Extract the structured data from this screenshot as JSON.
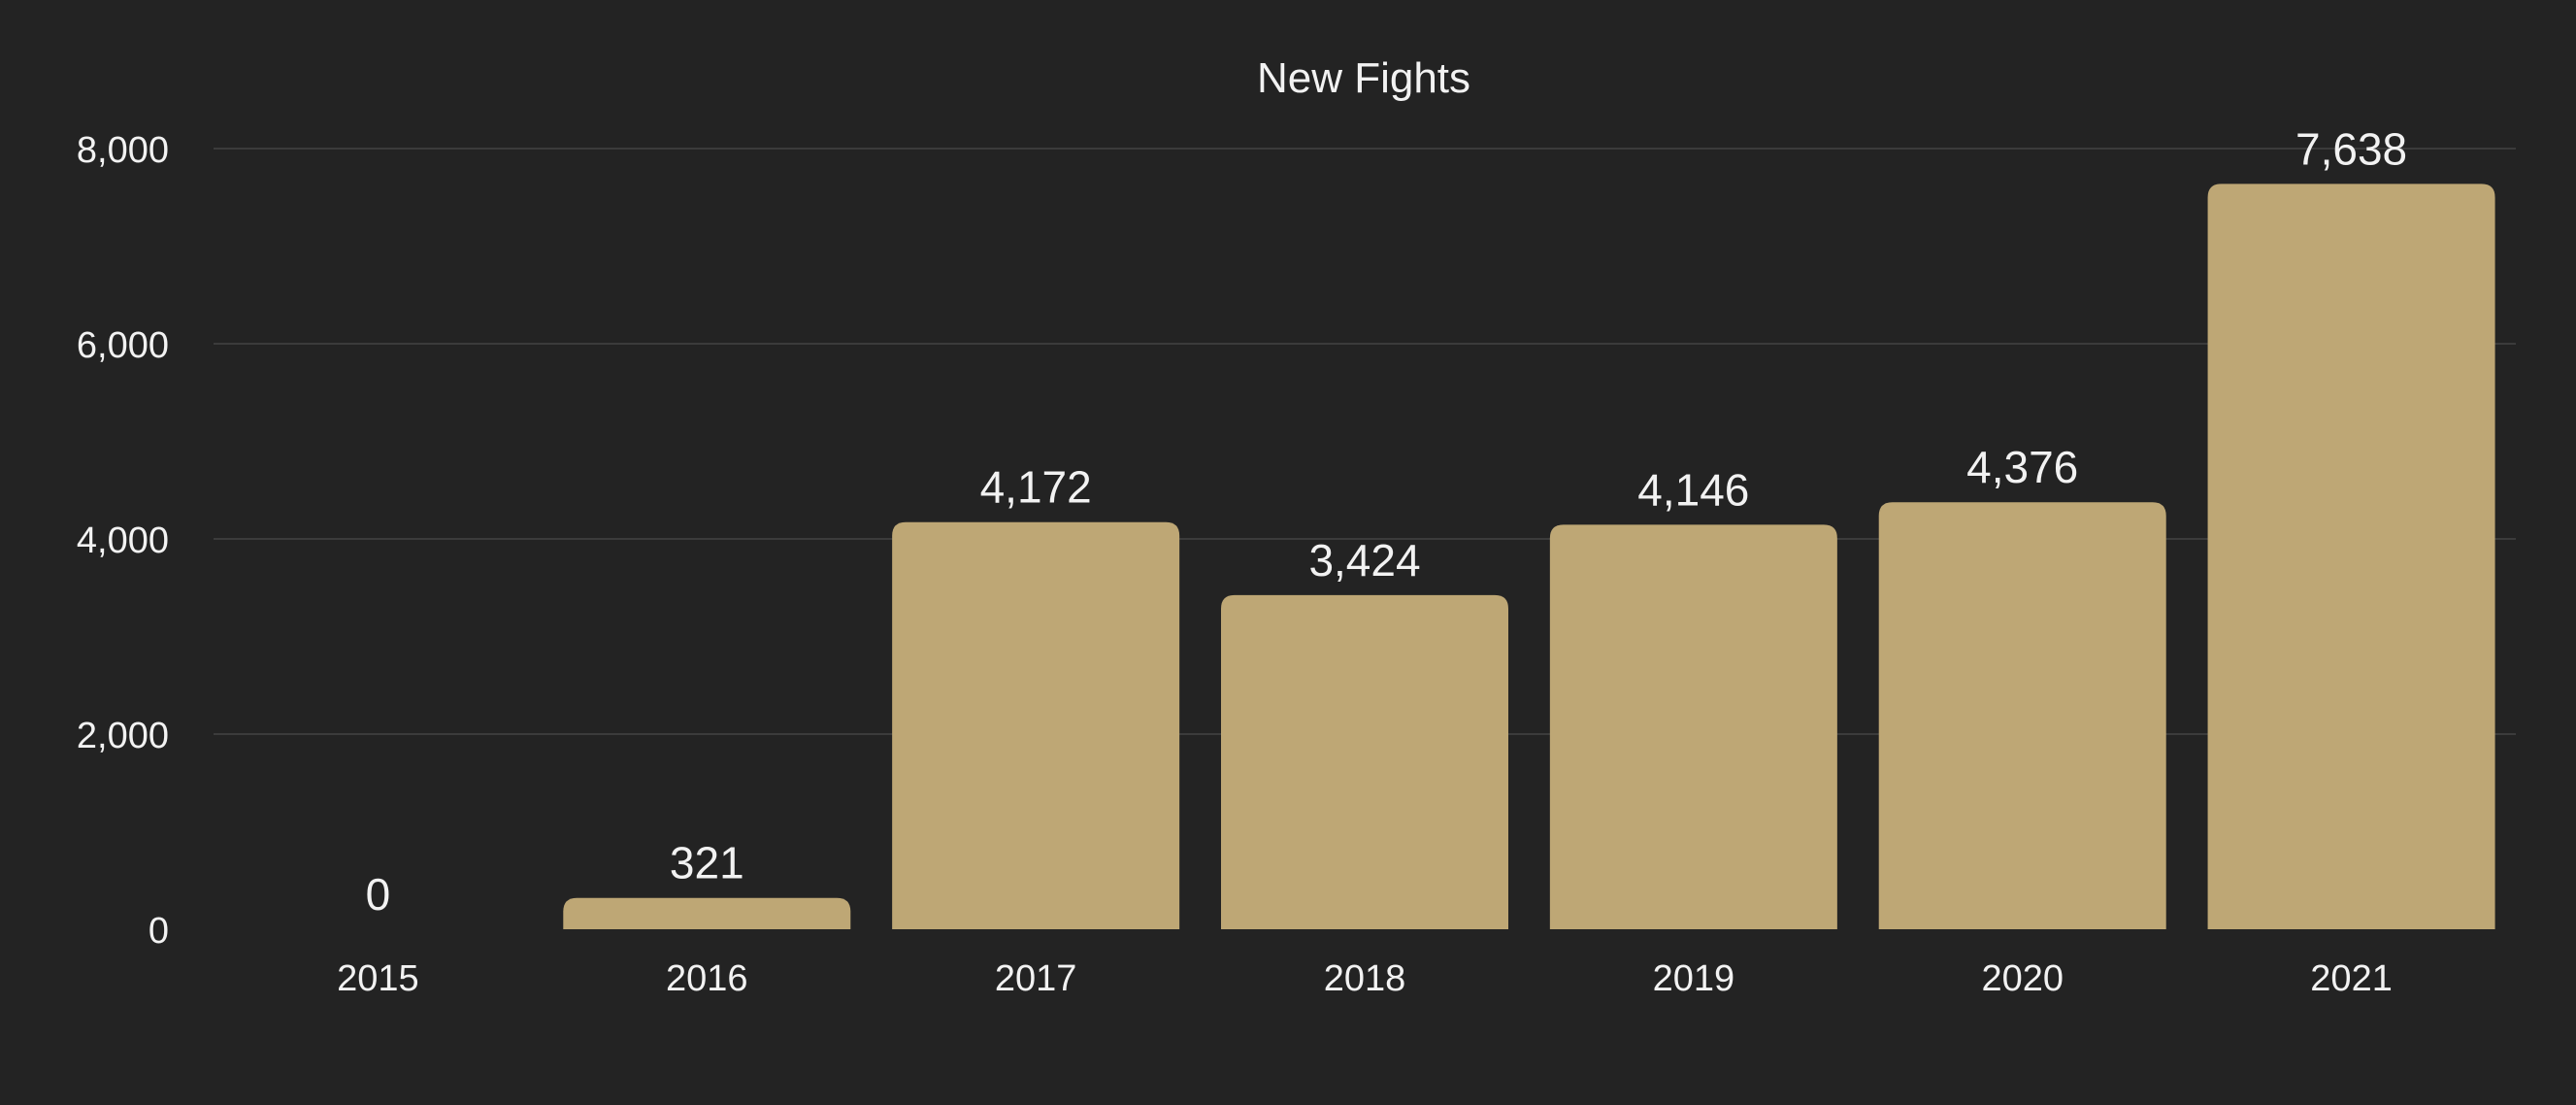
{
  "chart_data": {
    "type": "bar",
    "title": "New Fights",
    "categories": [
      "2015",
      "2016",
      "2017",
      "2018",
      "2019",
      "2020",
      "2021"
    ],
    "values": [
      0,
      321,
      4172,
      3424,
      4146,
      4376,
      7638
    ],
    "value_labels": [
      "0",
      "321",
      "4,172",
      "3,424",
      "4,146",
      "4,376",
      "7,638"
    ],
    "y_ticks": [
      0,
      2000,
      4000,
      6000,
      8000
    ],
    "y_tick_labels": [
      "0",
      "2,000",
      "4,000",
      "6,000",
      "8,000"
    ],
    "ylim": [
      0,
      8000
    ],
    "grid": true,
    "legend": "none"
  },
  "colors": {
    "background": "#232323",
    "bar": "#bea775",
    "text": "#f2f2f2",
    "grid": "#3b3b3b"
  }
}
